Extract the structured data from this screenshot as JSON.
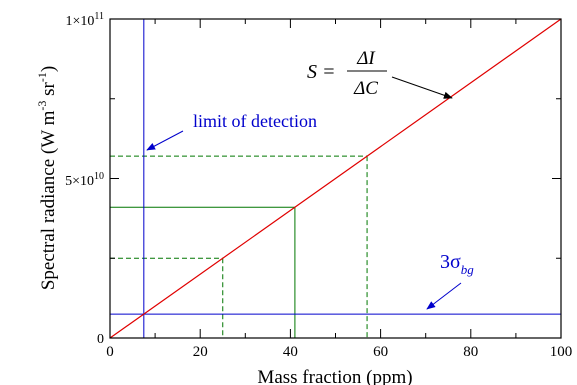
{
  "chart_data": {
    "type": "line",
    "xlabel": "Mass fraction (ppm)",
    "ylabel": "Spectral radiance (W m",
    "ylabel_sup1": "-3",
    "ylabel_mid": " sr",
    "ylabel_sup2": "-1",
    "ylabel_end": ")",
    "xlim": [
      0,
      100
    ],
    "ylim": [
      0,
      100000000000
    ],
    "x_ticks": [
      0,
      20,
      40,
      60,
      80,
      100
    ],
    "x_tick_labels": [
      "0",
      "20",
      "40",
      "60",
      "80",
      "100"
    ],
    "y_ticks": [
      0,
      50000000000,
      100000000000
    ],
    "y_tick_labels": [
      {
        "base": "0",
        "exp": ""
      },
      {
        "base": "5×10",
        "exp": "10"
      },
      {
        "base": "1×10",
        "exp": "11"
      }
    ],
    "colors": {
      "calibration": "#e00000",
      "detection": "#0000cc",
      "guide": "#007700"
    },
    "calibration_line": {
      "x": [
        0,
        100
      ],
      "y": [
        0,
        100000000000
      ]
    },
    "background_3sigma": {
      "y": 7500000000
    },
    "limit_of_detection": {
      "x": 7.5
    },
    "solid_guides": [
      {
        "x": 41,
        "y": 41000000000
      }
    ],
    "dashed_guides": [
      {
        "x": 25,
        "y": 25000000000
      },
      {
        "x": 57,
        "y": 57000000000
      }
    ],
    "annotations": {
      "lod_label": "limit of detection",
      "sigma_label": "3σ",
      "sigma_sub": "bg",
      "slope_lhs": "S = ",
      "slope_num": "ΔI",
      "slope_den": "ΔC"
    }
  }
}
